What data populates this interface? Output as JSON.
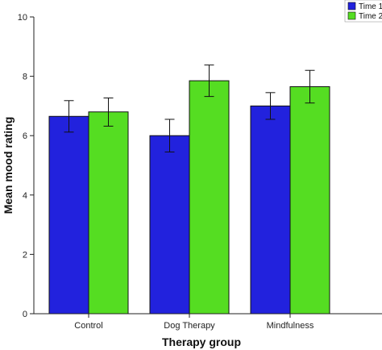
{
  "colors": {
    "Time 1": "#2222dd",
    "Time 2": "#55dd22"
  },
  "chart_data": {
    "type": "bar",
    "categories": [
      "Control",
      "Dog Therapy",
      "Mindfulness"
    ],
    "series": [
      {
        "name": "Time 1",
        "values": [
          6.65,
          6.0,
          7.0
        ],
        "error_low": [
          6.12,
          5.45,
          6.55
        ],
        "error_high": [
          7.18,
          6.55,
          7.45
        ]
      },
      {
        "name": "Time 2",
        "values": [
          6.8,
          7.85,
          7.65
        ],
        "error_low": [
          6.32,
          7.32,
          7.1
        ],
        "error_high": [
          7.27,
          8.38,
          8.2
        ]
      }
    ],
    "yticks": [
      "0",
      "2",
      "4",
      "6",
      "8",
      "10"
    ],
    "xlabel": "Therapy group",
    "ylabel": "Mean mood rating",
    "ylim": [
      0,
      10
    ],
    "grid": false,
    "legend_position": "top-right",
    "legend_entries": [
      "Time 1",
      "Time 2"
    ]
  }
}
